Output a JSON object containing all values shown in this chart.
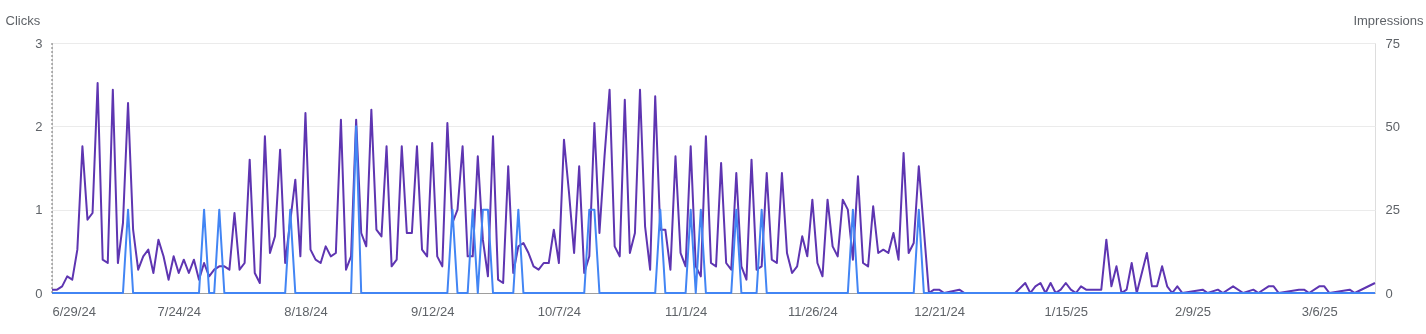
{
  "chart_data": {
    "type": "line",
    "ylabel": "Clicks",
    "y2label": "Impressions",
    "xlim": [
      "2024-06-29",
      "2025-03-17"
    ],
    "xticks": [
      {
        "value": "2024-06-29",
        "label": "6/29/24"
      },
      {
        "value": "2024-07-24",
        "label": "7/24/24"
      },
      {
        "value": "2024-08-18",
        "label": "8/18/24"
      },
      {
        "value": "2024-09-12",
        "label": "9/12/24"
      },
      {
        "value": "2024-10-07",
        "label": "10/7/24"
      },
      {
        "value": "2024-11-01",
        "label": "11/1/24"
      },
      {
        "value": "2024-11-26",
        "label": "11/26/24"
      },
      {
        "value": "2024-12-21",
        "label": "12/21/24"
      },
      {
        "value": "2025-01-15",
        "label": "1/15/25"
      },
      {
        "value": "2025-02-09",
        "label": "2/9/25"
      },
      {
        "value": "2025-03-06",
        "label": "3/6/25"
      }
    ],
    "ylim": [
      0,
      3
    ],
    "yticks": [
      0,
      1,
      2,
      3
    ],
    "y2lim": [
      0,
      75
    ],
    "y2ticks": [
      0,
      25,
      50,
      75
    ],
    "grid": "y",
    "marker": "none",
    "line_style": "solid",
    "ref_lines": [
      {
        "axis": "x",
        "value": "2024-06-29",
        "line_style": "dotted",
        "color": "#757575"
      }
    ],
    "series": [
      {
        "color": "#5e35b1",
        "axis": "y2",
        "x": [
          "2024-06-29",
          "2024-06-30",
          "2024-07-01",
          "2024-07-02",
          "2024-07-03",
          "2024-07-04",
          "2024-07-05",
          "2024-07-06",
          "2024-07-07",
          "2024-07-08",
          "2024-07-09",
          "2024-07-10",
          "2024-07-11",
          "2024-07-12",
          "2024-07-13",
          "2024-07-14",
          "2024-07-15",
          "2024-07-16",
          "2024-07-17",
          "2024-07-18",
          "2024-07-19",
          "2024-07-20",
          "2024-07-21",
          "2024-07-22",
          "2024-07-23",
          "2024-07-24",
          "2024-07-25",
          "2024-07-26",
          "2024-07-27",
          "2024-07-28",
          "2024-07-29",
          "2024-07-30",
          "2024-07-31",
          "2024-08-01",
          "2024-08-02",
          "2024-08-03",
          "2024-08-04",
          "2024-08-05",
          "2024-08-06",
          "2024-08-07",
          "2024-08-08",
          "2024-08-09",
          "2024-08-10",
          "2024-08-11",
          "2024-08-12",
          "2024-08-13",
          "2024-08-14",
          "2024-08-16",
          "2024-08-17",
          "2024-08-18",
          "2024-08-19",
          "2024-08-20",
          "2024-08-21",
          "2024-08-22",
          "2024-08-23",
          "2024-08-24",
          "2024-08-25",
          "2024-08-26",
          "2024-08-27",
          "2024-08-28",
          "2024-08-29",
          "2024-08-30",
          "2024-08-31",
          "2024-09-01",
          "2024-09-02",
          "2024-09-03",
          "2024-09-04",
          "2024-09-05",
          "2024-09-06",
          "2024-09-07",
          "2024-09-08",
          "2024-09-09",
          "2024-09-10",
          "2024-09-11",
          "2024-09-12",
          "2024-09-13",
          "2024-09-14",
          "2024-09-15",
          "2024-09-16",
          "2024-09-17",
          "2024-09-18",
          "2024-09-19",
          "2024-09-20",
          "2024-09-21",
          "2024-09-22",
          "2024-09-23",
          "2024-09-24",
          "2024-09-25",
          "2024-09-26",
          "2024-09-27",
          "2024-09-28",
          "2024-09-29",
          "2024-09-30",
          "2024-10-01",
          "2024-10-02",
          "2024-10-03",
          "2024-10-04",
          "2024-10-05",
          "2024-10-06",
          "2024-10-07",
          "2024-10-08",
          "2024-10-09",
          "2024-10-10",
          "2024-10-11",
          "2024-10-12",
          "2024-10-13",
          "2024-10-14",
          "2024-10-15",
          "2024-10-16",
          "2024-10-17",
          "2024-10-18",
          "2024-10-19",
          "2024-10-20",
          "2024-10-21",
          "2024-10-22",
          "2024-10-23",
          "2024-10-24",
          "2024-10-25",
          "2024-10-26",
          "2024-10-27",
          "2024-10-28",
          "2024-10-29",
          "2024-10-30",
          "2024-10-31",
          "2024-11-01",
          "2024-11-02",
          "2024-11-03",
          "2024-11-04",
          "2024-11-05",
          "2024-11-06",
          "2024-11-07",
          "2024-11-08",
          "2024-11-09",
          "2024-11-10",
          "2024-11-11",
          "2024-11-12",
          "2024-11-13",
          "2024-11-14",
          "2024-11-15",
          "2024-11-16",
          "2024-11-17",
          "2024-11-18",
          "2024-11-19",
          "2024-11-20",
          "2024-11-21",
          "2024-11-22",
          "2024-11-23",
          "2024-11-24",
          "2024-11-25",
          "2024-11-26",
          "2024-11-27",
          "2024-11-28",
          "2024-11-29",
          "2024-11-30",
          "2024-12-01",
          "2024-12-02",
          "2024-12-03",
          "2024-12-04",
          "2024-12-05",
          "2024-12-06",
          "2024-12-07",
          "2024-12-08",
          "2024-12-09",
          "2024-12-10",
          "2024-12-11",
          "2024-12-12",
          "2024-12-13",
          "2024-12-14",
          "2024-12-15",
          "2024-12-16",
          "2024-12-17",
          "2024-12-19",
          "2024-12-20",
          "2024-12-21",
          "2024-12-22",
          "2024-12-25",
          "2024-12-26",
          "2025-01-05",
          "2025-01-07",
          "2025-01-08",
          "2025-01-09",
          "2025-01-10",
          "2025-01-11",
          "2025-01-12",
          "2025-01-13",
          "2025-01-14",
          "2025-01-15",
          "2025-01-16",
          "2025-01-17",
          "2025-01-18",
          "2025-01-19",
          "2025-01-22",
          "2025-01-23",
          "2025-01-24",
          "2025-01-25",
          "2025-01-26",
          "2025-01-27",
          "2025-01-28",
          "2025-01-29",
          "2025-01-31",
          "2025-02-01",
          "2025-02-02",
          "2025-02-03",
          "2025-02-04",
          "2025-02-05",
          "2025-02-06",
          "2025-02-07",
          "2025-02-11",
          "2025-02-12",
          "2025-02-14",
          "2025-02-15",
          "2025-02-17",
          "2025-02-19",
          "2025-02-21",
          "2025-02-22",
          "2025-02-24",
          "2025-02-25",
          "2025-02-26",
          "2025-03-02",
          "2025-03-03",
          "2025-03-04",
          "2025-03-06",
          "2025-03-07",
          "2025-03-08",
          "2025-03-12",
          "2025-03-13",
          "2025-03-17"
        ],
        "values": [
          1,
          1,
          2,
          5,
          4,
          13,
          44,
          22,
          24,
          63,
          10,
          9,
          61,
          9,
          21,
          57,
          19,
          7,
          11,
          13,
          6,
          16,
          11,
          4,
          11,
          6,
          10,
          6,
          10,
          4,
          9,
          5,
          7,
          8,
          8,
          7,
          24,
          7,
          9,
          40,
          6,
          3,
          47,
          12,
          17,
          43,
          9,
          34,
          11,
          54,
          13,
          10,
          9,
          14,
          11,
          12,
          52,
          7,
          11,
          52,
          18,
          14,
          55,
          19,
          17,
          44,
          8,
          10,
          44,
          18,
          18,
          44,
          13,
          11,
          45,
          11,
          8,
          51,
          21,
          25,
          44,
          11,
          11,
          41,
          16,
          5,
          47,
          4,
          3,
          38,
          6,
          14,
          15,
          12,
          8,
          7,
          9,
          9,
          19,
          9,
          46,
          30,
          12,
          38,
          6,
          11,
          51,
          18,
          41,
          61,
          14,
          11,
          58,
          12,
          18,
          61,
          20,
          7,
          59,
          19,
          19,
          7,
          41,
          12,
          8,
          44,
          8,
          5,
          47,
          9,
          8,
          39,
          9,
          7,
          36,
          8,
          4,
          40,
          7,
          8,
          36,
          10,
          9,
          36,
          12,
          6,
          8,
          17,
          11,
          28,
          9,
          5,
          28,
          14,
          11,
          28,
          25,
          10,
          35,
          9,
          8,
          26,
          12,
          13,
          12,
          18,
          10,
          42,
          12,
          15,
          38,
          0,
          1,
          1,
          0,
          1,
          0,
          0,
          3,
          0,
          2,
          3,
          0,
          3,
          0,
          1,
          3,
          1,
          0,
          2,
          1,
          1,
          16,
          2,
          8,
          0,
          1,
          9,
          0,
          12,
          2,
          2,
          8,
          2,
          0,
          2,
          0,
          1,
          0,
          1,
          0,
          2,
          0,
          1,
          0,
          2,
          2,
          0,
          1,
          1,
          0,
          2,
          2,
          0,
          1,
          0,
          3
        ]
      },
      {
        "color": "#4285f4",
        "x": [
          "2024-06-29",
          "2024-07-13",
          "2024-07-14",
          "2024-07-15",
          "2024-07-28",
          "2024-07-29",
          "2024-07-30",
          "2024-07-31",
          "2024-08-01",
          "2024-08-02",
          "2024-08-14",
          "2024-08-15",
          "2024-08-16",
          "2024-08-27",
          "2024-08-28",
          "2024-08-29",
          "2024-09-15",
          "2024-09-16",
          "2024-09-17",
          "2024-09-19",
          "2024-09-20",
          "2024-09-21",
          "2024-09-22",
          "2024-09-23",
          "2024-09-24",
          "2024-09-28",
          "2024-09-29",
          "2024-09-30",
          "2024-10-12",
          "2024-10-13",
          "2024-10-14",
          "2024-10-15",
          "2024-10-26",
          "2024-10-27",
          "2024-10-28",
          "2024-11-01",
          "2024-11-02",
          "2024-11-03",
          "2024-11-04",
          "2024-11-05",
          "2024-11-10",
          "2024-11-11",
          "2024-11-12",
          "2024-11-15",
          "2024-11-16",
          "2024-11-17",
          "2024-12-03",
          "2024-12-04",
          "2024-12-05",
          "2024-12-16",
          "2024-12-17",
          "2024-12-18",
          "2025-03-17"
        ],
        "values": [
          0,
          0,
          1,
          0,
          0,
          1,
          0,
          0,
          1,
          0,
          0,
          1,
          0,
          0,
          2,
          0,
          0,
          1,
          0,
          0,
          1,
          0,
          1,
          1,
          0,
          0,
          1,
          0,
          0,
          1,
          1,
          0,
          0,
          1,
          0,
          0,
          1,
          0,
          1,
          0,
          0,
          1,
          0,
          0,
          1,
          0,
          0,
          1,
          0,
          0,
          1,
          0,
          0
        ]
      }
    ]
  }
}
